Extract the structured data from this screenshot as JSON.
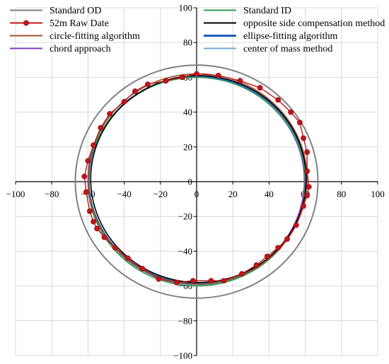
{
  "chart_data": {
    "type": "scatter",
    "title": "",
    "xlabel": "",
    "ylabel": "",
    "xlim": [
      -100,
      100
    ],
    "ylim": [
      -100,
      100
    ],
    "x_ticks": [
      -100,
      -80,
      -60,
      -40,
      -20,
      0,
      20,
      40,
      60,
      80,
      100
    ],
    "y_ticks": [
      -100,
      -80,
      -60,
      -40,
      -20,
      20,
      40,
      60,
      80,
      100
    ],
    "y_tick_zero": "0",
    "x_tick_zero": "0",
    "grid": true,
    "legend_position": "top",
    "legend": [
      {
        "label": "Standard OD",
        "color": "#808080"
      },
      {
        "label": "Standard ID",
        "color": "#2e9e4f"
      },
      {
        "label": "52m Raw Date",
        "color": "#c0161c",
        "marker": "circle"
      },
      {
        "label": "opposite side compensation method",
        "color": "#000000"
      },
      {
        "label": "circle-fitting algorithm",
        "color": "#a0522d"
      },
      {
        "label": "ellipse-fitting algorithm",
        "color": "#1f5fbf"
      },
      {
        "label": "chord approach",
        "color": "#7b3fbf"
      },
      {
        "label": "center of mass method",
        "color": "#6fa8dc"
      }
    ],
    "series": [
      {
        "name": "Standard OD",
        "shape": "circle",
        "center": [
          0,
          0
        ],
        "radius": 67,
        "color": "#808080"
      },
      {
        "name": "Standard ID",
        "shape": "circle",
        "center": [
          0,
          0
        ],
        "radius": 60,
        "color": "#2e9e4f"
      },
      {
        "name": "opposite side compensation method",
        "shape": "ellipse",
        "center": [
          1,
          1.5
        ],
        "rx": 59.5,
        "ry": 59.5,
        "color": "#000000"
      },
      {
        "name": "circle-fitting algorithm",
        "shape": "circle",
        "center": [
          0.5,
          1.5
        ],
        "radius": 60.5,
        "color": "#a0522d"
      },
      {
        "name": "ellipse-fitting algorithm",
        "shape": "ellipse",
        "center": [
          0.5,
          1
        ],
        "rx": 60,
        "ry": 59.5,
        "color": "#1f5fbf"
      },
      {
        "name": "chord approach",
        "shape": "circle",
        "center": [
          0,
          0.5
        ],
        "radius": 59.5,
        "color": "#7b3fbf"
      },
      {
        "name": "center of mass method",
        "shape": "circle",
        "center": [
          0.5,
          0.5
        ],
        "radius": 60,
        "color": "#6fa8dc"
      },
      {
        "name": "52m Raw Date",
        "shape": "points",
        "color": "#c0161c",
        "points": [
          [
            0,
            62
          ],
          [
            12,
            61
          ],
          [
            24,
            58
          ],
          [
            35,
            54
          ],
          [
            45,
            47
          ],
          [
            52,
            40
          ],
          [
            57,
            34
          ],
          [
            59,
            25
          ],
          [
            61,
            17
          ],
          [
            61,
            6
          ],
          [
            62,
            -3
          ],
          [
            61,
            -8
          ],
          [
            59,
            -14
          ],
          [
            55,
            -25
          ],
          [
            50,
            -33
          ],
          [
            45,
            -38
          ],
          [
            39,
            -43
          ],
          [
            33,
            -48
          ],
          [
            25,
            -53
          ],
          [
            15,
            -57
          ],
          [
            8,
            -57
          ],
          [
            -2,
            -57
          ],
          [
            -11,
            -58
          ],
          [
            -21,
            -56
          ],
          [
            -30,
            -50
          ],
          [
            -38,
            -44
          ],
          [
            -45,
            -38
          ],
          [
            -51,
            -32
          ],
          [
            -55,
            -27
          ],
          [
            -57,
            -23
          ],
          [
            -59,
            -17
          ],
          [
            -61,
            -6
          ],
          [
            -62,
            3
          ],
          [
            -60,
            12
          ],
          [
            -57,
            21
          ],
          [
            -53,
            31
          ],
          [
            -48,
            39
          ],
          [
            -40,
            46
          ],
          [
            -34,
            52
          ],
          [
            -27,
            56
          ],
          [
            -17,
            58
          ],
          [
            -8,
            60
          ]
        ]
      }
    ]
  }
}
